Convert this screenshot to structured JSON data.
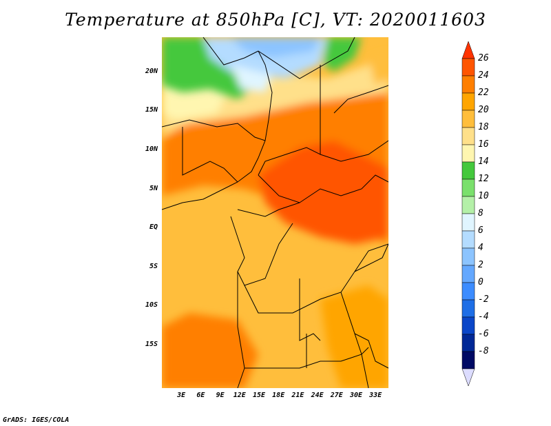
{
  "title": "Temperature at 850hPa [C], VT: 2020011603",
  "credit": "GrADS: IGES/COLA",
  "lat_labels": [
    {
      "label": "20N",
      "lat": 20
    },
    {
      "label": "15N",
      "lat": 15
    },
    {
      "label": "10N",
      "lat": 10
    },
    {
      "label": "5N",
      "lat": 5
    },
    {
      "label": "EQ",
      "lat": 0
    },
    {
      "label": "5S",
      "lat": -5
    },
    {
      "label": "10S",
      "lat": -10
    },
    {
      "label": "15S",
      "lat": -15
    }
  ],
  "lon_labels": [
    {
      "label": "3E",
      "lon": 3
    },
    {
      "label": "6E",
      "lon": 6
    },
    {
      "label": "9E",
      "lon": 9
    },
    {
      "label": "12E",
      "lon": 12
    },
    {
      "label": "15E",
      "lon": 15
    },
    {
      "label": "18E",
      "lon": 18
    },
    {
      "label": "21E",
      "lon": 21
    },
    {
      "label": "24E",
      "lon": 24
    },
    {
      "label": "27E",
      "lon": 27
    },
    {
      "label": "30E",
      "lon": 30
    },
    {
      "label": "33E",
      "lon": 33
    }
  ],
  "colorbar": {
    "levels": [
      "26",
      "24",
      "22",
      "20",
      "18",
      "16",
      "14",
      "12",
      "10",
      "8",
      "6",
      "4",
      "2",
      "0",
      "-2",
      "-4",
      "-6",
      "-8"
    ],
    "colors": [
      "#ff3300",
      "#ff5500",
      "#ff7f00",
      "#ffa500",
      "#ffbe3c",
      "#ffe08a",
      "#fff6b0",
      "#44c83c",
      "#7ae06c",
      "#b4f0a8",
      "#e0f5ff",
      "#b4dcff",
      "#8cc4ff",
      "#64a8ff",
      "#3c8cff",
      "#1e6ee6",
      "#0a46c8",
      "#002896",
      "#000a64",
      "#dcdcff"
    ]
  }
}
